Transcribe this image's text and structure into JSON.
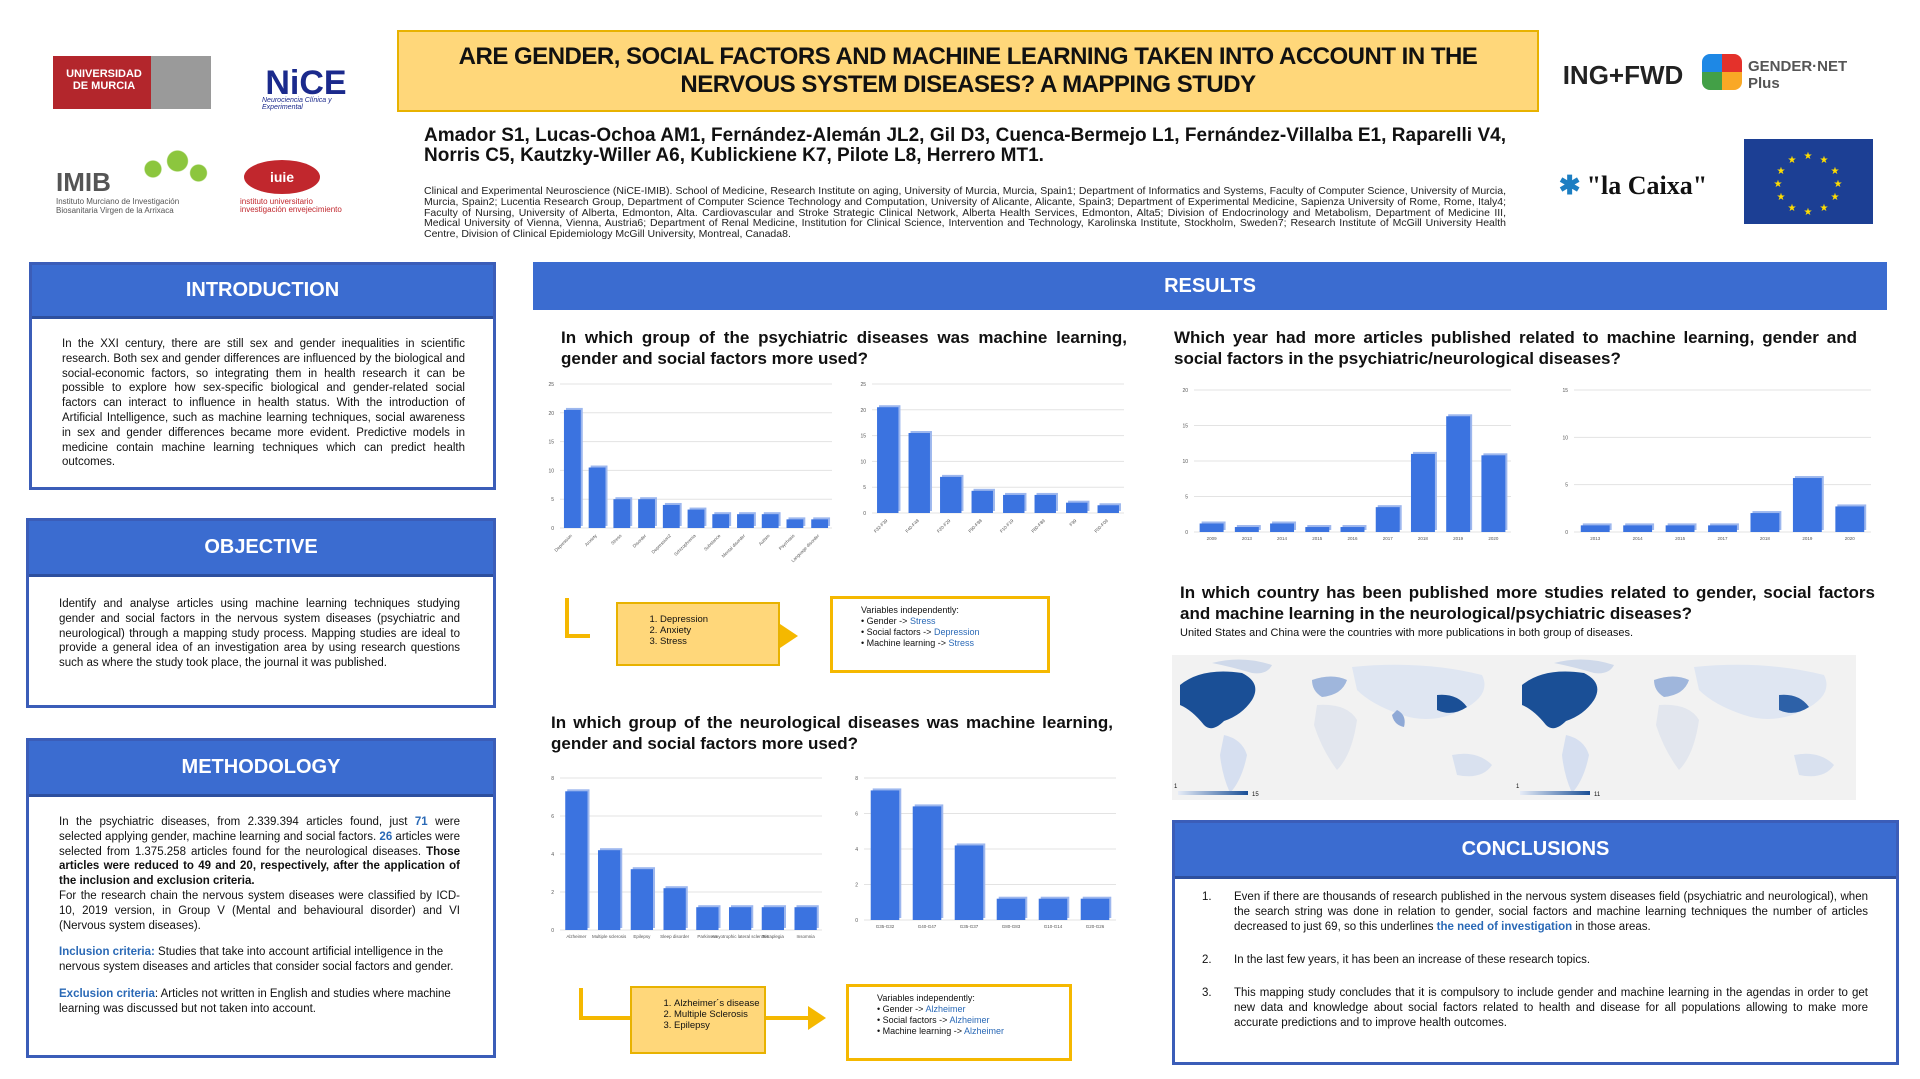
{
  "header": {
    "title": "ARE GENDER, SOCIAL FACTORS AND MACHINE LEARNING TAKEN INTO ACCOUNT IN THE NERVOUS SYSTEM DISEASES? A MAPPING STUDY",
    "authors": "Amador S1, Lucas-Ochoa AM1, Fernández-Alemán JL2, Gil D3, Cuenca-Bermejo L1, Fernández-Villalba E1, Raparelli V4, Norris C5, Kautzky-Willer A6, Kublickiene K7, Pilote L8, Herrero MT1.",
    "affiliations": "Clinical and Experimental Neuroscience (NiCE-IMIB). School of Medicine, Research Institute on aging, University of Murcia, Murcia, Spain1; Department of Informatics and Systems, Faculty of Computer Science, University of Murcia, Murcia, Spain2; Lucentia Research Group, Department of Computer Science Technology and Computation, University of Alicante, Alicante, Spain3; Department of Experimental Medicine, Sapienza University of Rome, Rome, Italy4; Faculty of Nursing, University of Alberta, Edmonton, Alta. Cardiovascular and Stroke Strategic Clinical Network, Alberta Health Services, Edmonton, Alta5; Division of Endocrinology and Metabolism, Department of Medicine III, Medical University of Vienna, Vienna, Austria6; Department of Renal Medicine, Institution for Clinical Science, Intervention and Technology, Karolinska Institute, Stockholm, Sweden7; Research Institute of McGill University Health Centre, Division of Clinical Epidemiology McGill University, Montreal, Canada8."
  },
  "logos": {
    "um": "UNIVERSIDAD DE MURCIA",
    "nice": "NiCE",
    "nice_sub": "Neurociencia Clínica y Experimental",
    "imib": "IMIB",
    "imib_sub": "Instituto Murciano de Investigación Biosanitaria Virgen de la Arrixaca",
    "iuie": "iuie",
    "iuie_sub": "instituto universitario investigación envejecimiento",
    "ing": "ING+FWD",
    "gendernet": "GENDER·NET Plus",
    "caixa": "\"la Caixa\""
  },
  "introduction": {
    "heading": "INTRODUCTION",
    "text": "In the XXI century, there are still sex and gender inequalities in scientific research. Both sex and gender differences are influenced by the biological and social-economic factors, so integrating them in health research it can be possible to explore how sex-specific biological and gender-related social factors can interact to influence in health status. With the introduction of Artificial Intelligence, such as machine learning techniques, social awareness in sex and gender differences became more evident. Predictive models in medicine contain machine learning techniques which can predict health outcomes."
  },
  "objective": {
    "heading": "OBJECTIVE",
    "text": "Identify and analyse articles using machine learning techniques studying gender and social factors in the nervous system diseases (psychiatric and neurological) through a mapping study process. Mapping studies are ideal to provide a general idea of an investigation area by using research questions such as where the study took place, the journal it was published."
  },
  "methodology": {
    "heading": "METHODOLOGY",
    "p1_a": "In the psychiatric diseases, from 2.339.394 articles found, just ",
    "p1_n1": "71",
    "p1_b": " were selected applying gender, machine learning and social factors. ",
    "p1_n2": "26",
    "p1_c": " articles were selected from 1.375.258 articles found for the neurological diseases. ",
    "p1_bold": "Those articles were reduced to 49 and 20, respectively, after the application of the inclusion and exclusion criteria.",
    "p1_d": "For the research chain the nervous system diseases were classified by ICD-10, 2019 version, in Group V (Mental and behavioural disorder) and VI (Nervous system diseases).",
    "inclusion_label": "Inclusion criteria:",
    "inclusion_text": " Studies that take into account artificial intelligence in the nervous system diseases and articles that consider social factors and gender.",
    "exclusion_label": "Exclusion criteria",
    "exclusion_text": ": Articles not written in English and studies where machine learning was discussed but not taken into account."
  },
  "results": {
    "heading": "RESULTS",
    "q1": "In which group of the psychiatric diseases was machine learning, gender and social factors more used?",
    "q2": "In which group of the neurological diseases was machine learning, gender and social factors more used?",
    "q3": "Which year had more articles published related to machine learning, gender and social factors in the psychiatric/neurological diseases?",
    "q4": "In which country has been published more studies related to gender, social factors and machine learning in the neurological/psychiatric diseases?",
    "q4_note": "United States and China were the countries with more publications in both group of diseases.",
    "psy_flow": [
      "Depression",
      "Anxiety",
      "Stress"
    ],
    "psy_vars_title": "Variables independently:",
    "psy_vars": [
      {
        "label": "Gender       ->",
        "value": "Stress"
      },
      {
        "label": "Social factors     ->",
        "value": "Depression"
      },
      {
        "label": "Machine learning    ->",
        "value": "Stress"
      }
    ],
    "neuro_flow": [
      "Alzheimer´s disease",
      "Multiple Sclerosis",
      "Epilepsy"
    ],
    "neuro_vars_title": "Variables independently:",
    "neuro_vars": [
      {
        "label": "Gender       ->",
        "value": "Alzheimer"
      },
      {
        "label": "Social factors     ->",
        "value": "Alzheimer"
      },
      {
        "label": "Machine learning    ->",
        "value": "Alzheimer"
      }
    ],
    "map_legend_left": [
      "1",
      "15"
    ],
    "map_legend_right": [
      "1",
      "11"
    ]
  },
  "conclusions": {
    "heading": "CONCLUSIONS",
    "items": [
      {
        "n": "1.",
        "a": "Even if there are thousands of research published in the nervous system diseases field (psychiatric and neurological), when the search string was done in relation to gender, social factors and machine learning techniques the number of articles decreased to just 69, so this underlines ",
        "hl": "the need of investigation",
        "b": " in those areas."
      },
      {
        "n": "2.",
        "a": "In the last few years, it has been an increase of these research topics.",
        "hl": "",
        "b": ""
      },
      {
        "n": "3.",
        "a": "This mapping study concludes that it is compulsory to include gender and machine learning in the agendas in order to get new data and knowledge about social factors related to health and disease for all populations allowing to make more accurate predictions and to improve health outcomes.",
        "hl": "",
        "b": ""
      }
    ]
  },
  "colors": {
    "bar": "#3b73e0",
    "accent": "#3b6cd0",
    "highlight": "#ffd77a"
  },
  "chart_data": [
    {
      "type": "bar",
      "id": "psy-sf",
      "categories": [
        "Depression",
        "Anxiety",
        "Stress",
        "Disorder",
        "Depression2",
        "Schizophrenia",
        "Substance",
        "Mental disorder",
        "Autism",
        "Psychosis",
        "Language disorder"
      ],
      "values": [
        20.5,
        10.5,
        5,
        5,
        4,
        3.2,
        2.4,
        2.4,
        2.4,
        1.5,
        1.5
      ],
      "ylim": [
        0,
        25
      ],
      "yticks": [
        "0",
        "5",
        "10",
        "15",
        "20",
        "25"
      ]
    },
    {
      "type": "bar",
      "id": "psy-icd",
      "categories": [
        "F32-F39",
        "F40-F48",
        "F20-F29",
        "F90-F98",
        "F10-F19",
        "F80-F89",
        "F99",
        "F00-F09"
      ],
      "values": [
        20.5,
        15.5,
        7,
        4.3,
        3.5,
        3.5,
        2,
        1.5
      ],
      "ylim": [
        0,
        25
      ],
      "yticks": [
        "0",
        "5",
        "10",
        "15",
        "20",
        "25"
      ]
    },
    {
      "type": "bar",
      "id": "neuro-sf",
      "categories": [
        "Alzheimer",
        "Multiple sclerosis",
        "Epilepsy",
        "Sleep disorder",
        "Parkinson",
        "Amyotrophic lateral sclerosis",
        "Tetraplegia",
        "Insomnia"
      ],
      "values": [
        7.3,
        4.2,
        3.2,
        2.2,
        1.2,
        1.2,
        1.2,
        1.2
      ],
      "ylim": [
        0,
        8
      ],
      "yticks": [
        "0",
        "2",
        "4",
        "6",
        "8"
      ]
    },
    {
      "type": "bar",
      "id": "neuro-icd",
      "categories": [
        "G35-G32",
        "G40-G47",
        "G35-G37",
        "G80-G83",
        "G10-G14",
        "G20-G26"
      ],
      "values": [
        7.3,
        6.4,
        4.2,
        1.2,
        1.2,
        1.2
      ],
      "ylim": [
        0,
        8
      ],
      "yticks": [
        "0",
        "2",
        "4",
        "6",
        "8"
      ]
    },
    {
      "type": "bar",
      "id": "year-psy",
      "categories": [
        "2009",
        "2013",
        "2014",
        "2015",
        "2016",
        "2017",
        "2018",
        "2019",
        "2020"
      ],
      "values": [
        1.2,
        0.7,
        1.2,
        0.7,
        0.7,
        3.5,
        11,
        16.3,
        10.8
      ],
      "ylim": [
        0,
        20
      ],
      "yticks": [
        "0",
        "5",
        "10",
        "15",
        "20"
      ]
    },
    {
      "type": "bar",
      "id": "year-neuro",
      "categories": [
        "2013",
        "2014",
        "2015",
        "2017",
        "2018",
        "2019",
        "2020"
      ],
      "values": [
        0.7,
        0.7,
        0.7,
        0.7,
        2,
        5.7,
        2.7
      ],
      "ylim": [
        0,
        15
      ],
      "yticks": [
        "0",
        "5",
        "10",
        "15"
      ]
    }
  ]
}
